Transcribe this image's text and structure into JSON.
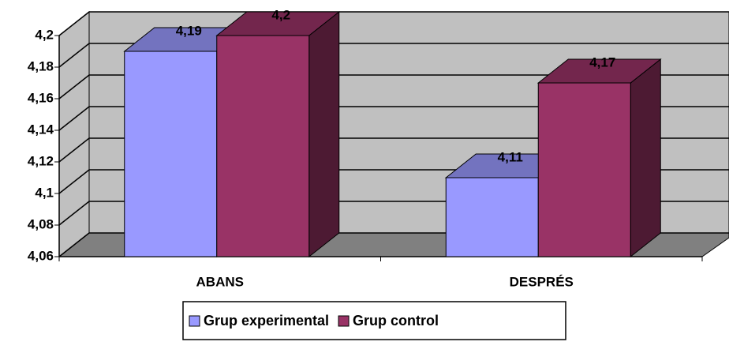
{
  "chart_data": {
    "type": "bar3d",
    "categories": [
      "ABANS",
      "DESPRÉS"
    ],
    "series": [
      {
        "name": "Grup experimental",
        "color": "#9999ff",
        "values": [
          4.19,
          4.11
        ],
        "value_labels": [
          "4,19",
          "4,11"
        ]
      },
      {
        "name": "Grup control",
        "color": "#993366",
        "values": [
          4.2,
          4.17
        ],
        "value_labels": [
          "4,2",
          "4,17"
        ]
      }
    ],
    "ylim": [
      4.06,
      4.2
    ],
    "yticks": [
      {
        "value": 4.06,
        "label": "4,06"
      },
      {
        "value": 4.08,
        "label": "4,08"
      },
      {
        "value": 4.1,
        "label": "4,1"
      },
      {
        "value": 4.12,
        "label": "4,12"
      },
      {
        "value": 4.14,
        "label": "4,14"
      },
      {
        "value": 4.16,
        "label": "4,16"
      },
      {
        "value": 4.18,
        "label": "4,18"
      },
      {
        "value": 4.2,
        "label": "4,2"
      }
    ],
    "grid": true,
    "legend": "bottom"
  }
}
